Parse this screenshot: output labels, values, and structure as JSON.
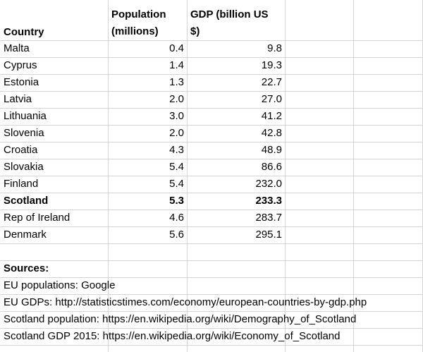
{
  "table": {
    "headers": {
      "country": "Country",
      "population_line1": "Population",
      "population_line2": "(millions)",
      "gdp_line1": "GDP (billion US",
      "gdp_line2": "$)"
    },
    "rows": [
      {
        "country": "Malta",
        "population": "0.4",
        "gdp": "9.8",
        "bold": false
      },
      {
        "country": "Cyprus",
        "population": "1.4",
        "gdp": "19.3",
        "bold": false
      },
      {
        "country": "Estonia",
        "population": "1.3",
        "gdp": "22.7",
        "bold": false
      },
      {
        "country": "Latvia",
        "population": "2.0",
        "gdp": "27.0",
        "bold": false
      },
      {
        "country": "Lithuania",
        "population": "3.0",
        "gdp": "41.2",
        "bold": false
      },
      {
        "country": "Slovenia",
        "population": "2.0",
        "gdp": "42.8",
        "bold": false
      },
      {
        "country": "Croatia",
        "population": "4.3",
        "gdp": "48.9",
        "bold": false
      },
      {
        "country": "Slovakia",
        "population": "5.4",
        "gdp": "86.6",
        "bold": false
      },
      {
        "country": "Finland",
        "population": "5.4",
        "gdp": "232.0",
        "bold": false
      },
      {
        "country": "Scotland",
        "population": "5.3",
        "gdp": "233.3",
        "bold": true
      },
      {
        "country": "Rep of Ireland",
        "population": "4.6",
        "gdp": "283.7",
        "bold": false
      },
      {
        "country": "Denmark",
        "population": "5.6",
        "gdp": "295.1",
        "bold": false
      }
    ]
  },
  "sources": {
    "heading": "Sources:",
    "lines": [
      "EU populations: Google",
      "EU GDPs: http://statisticstimes.com/economy/european-countries-by-gdp.php",
      "Scotland population: https://en.wikipedia.org/wiki/Demography_of_Scotland",
      "Scotland GDP 2015: https://en.wikipedia.org/wiki/Economy_of_Scotland"
    ]
  }
}
